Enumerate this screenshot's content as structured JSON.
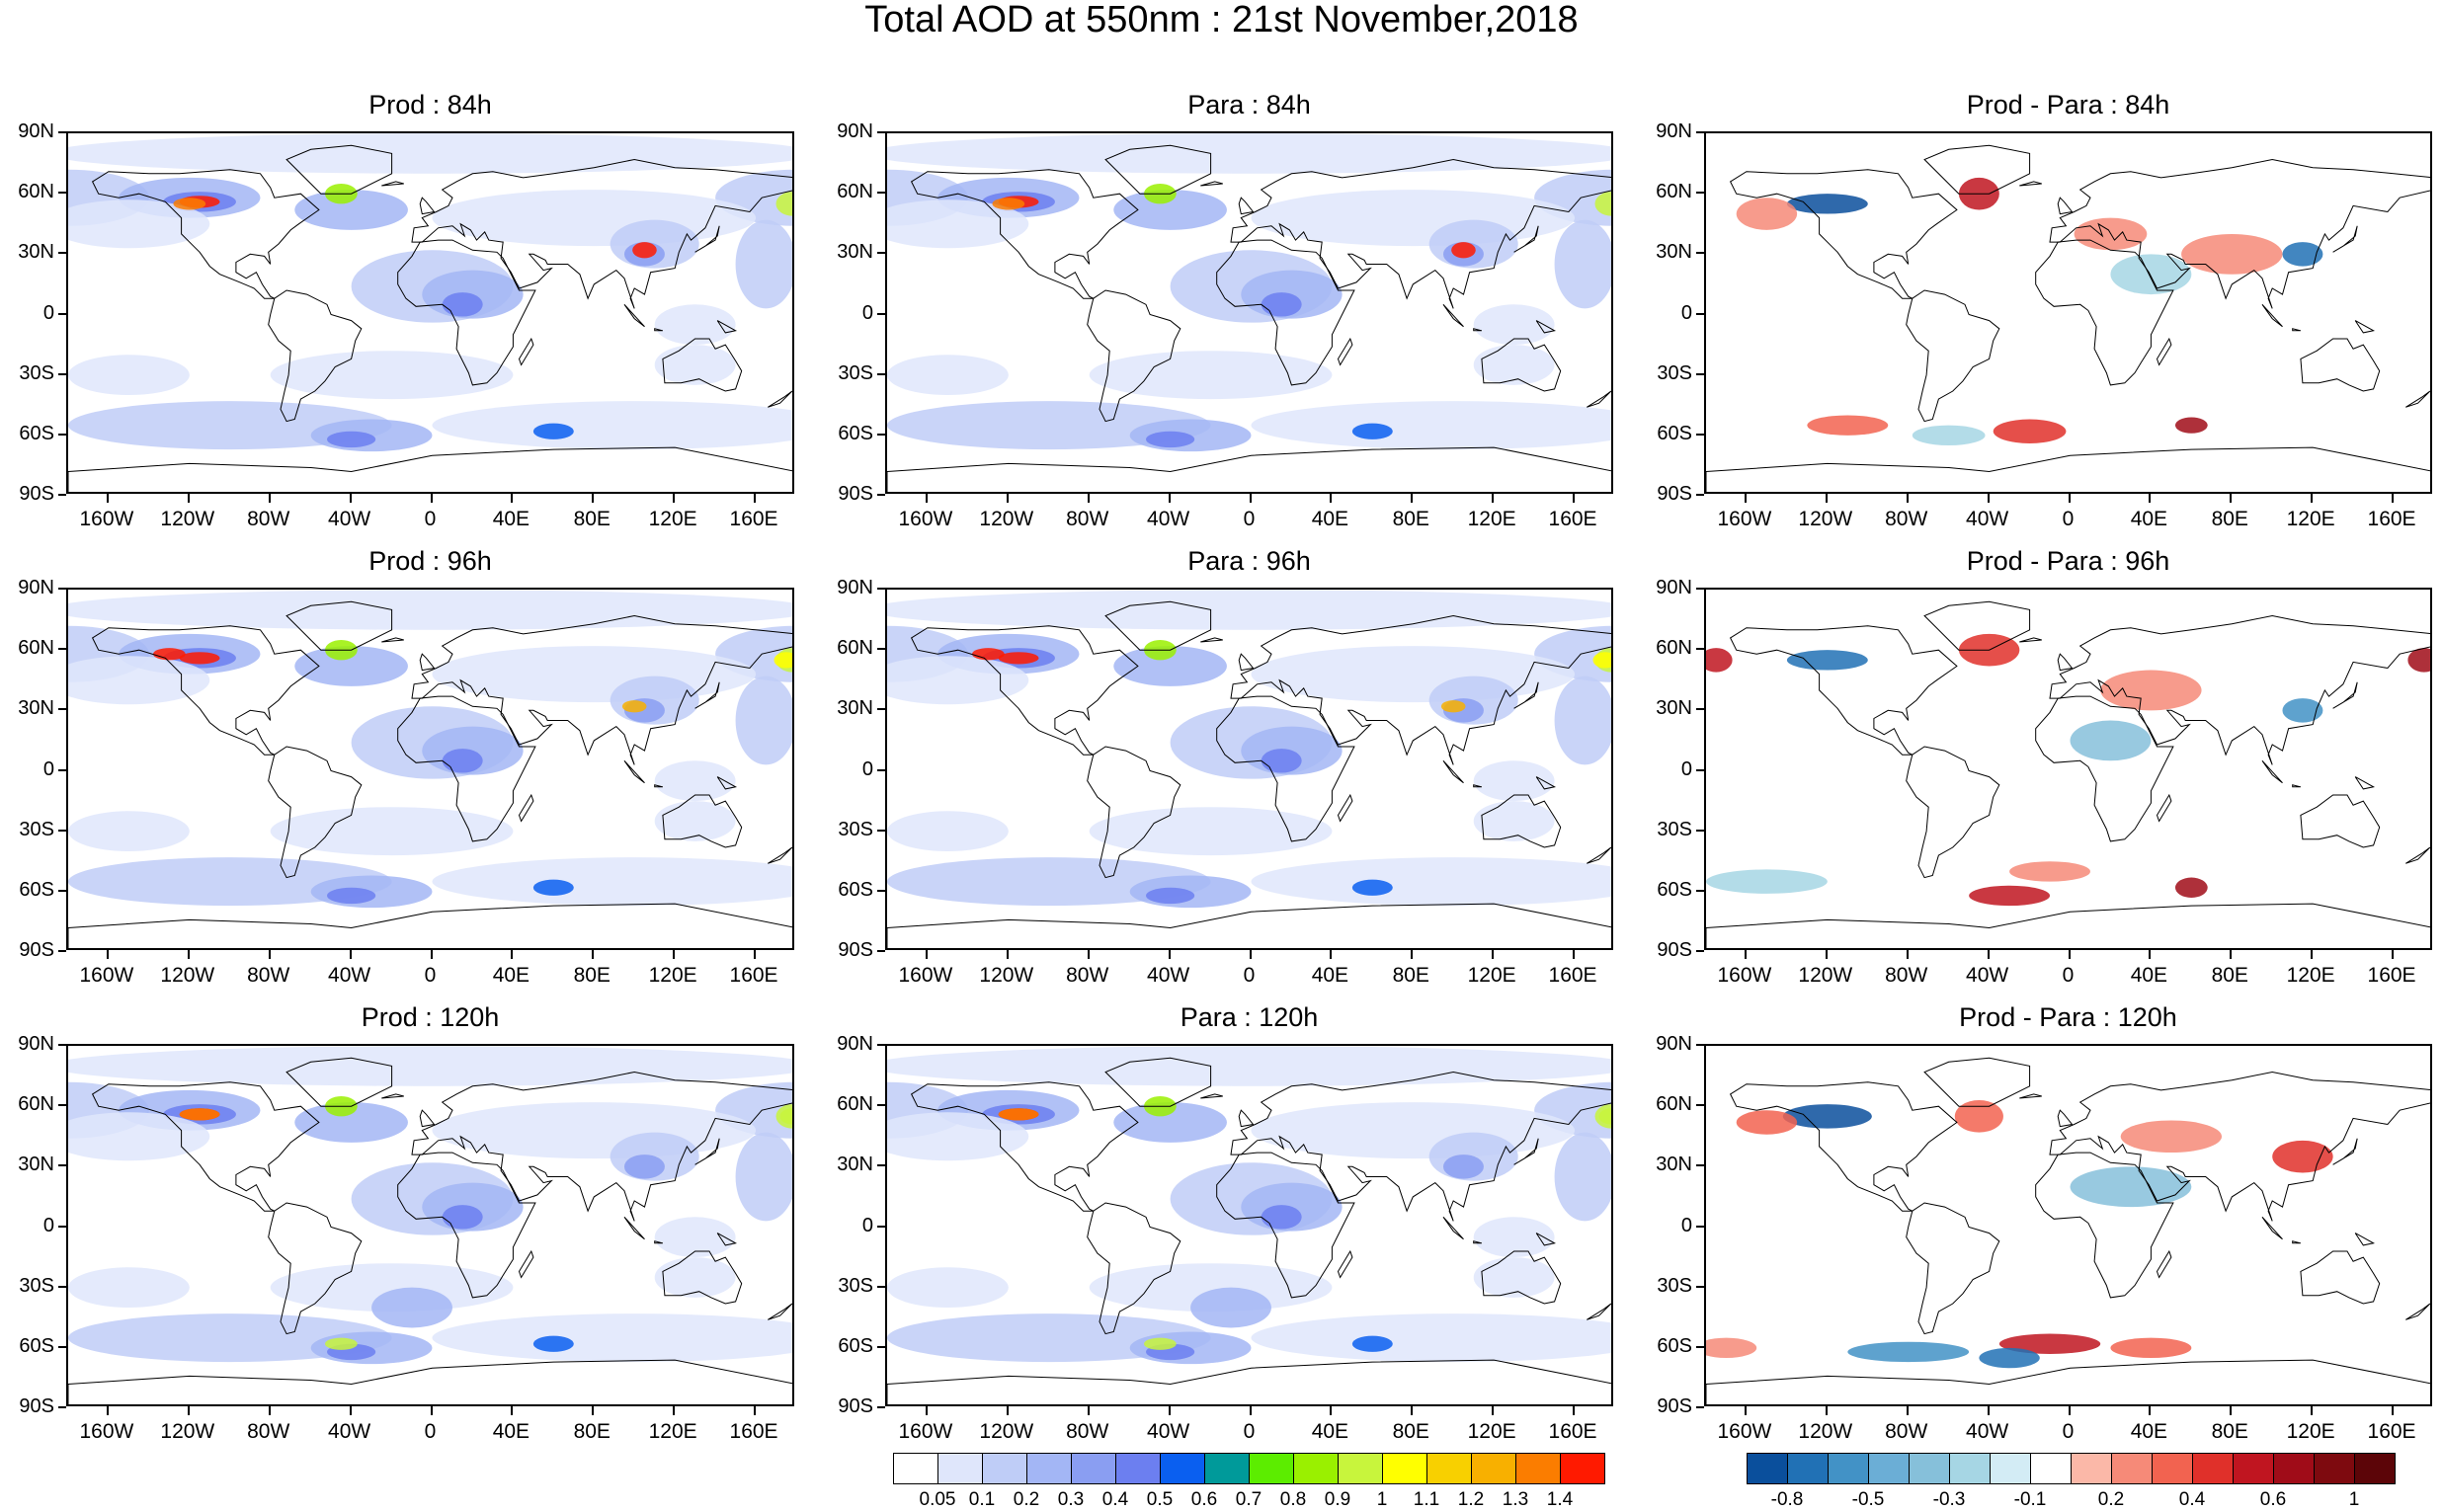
{
  "figure": {
    "title": "Total AOD at 550nm : 21st November,2018"
  },
  "lat_labels": [
    "90N",
    "60N",
    "30N",
    "0",
    "30S",
    "60S",
    "90S"
  ],
  "lon_labels": [
    "160W",
    "120W",
    "80W",
    "40W",
    "0",
    "40E",
    "80E",
    "120E",
    "160E"
  ],
  "panels": [
    {
      "title": "Prod : 84h",
      "kind": "aod"
    },
    {
      "title": "Para : 84h",
      "kind": "aod"
    },
    {
      "title": "Prod - Para : 84h",
      "kind": "diff"
    },
    {
      "title": "Prod : 96h",
      "kind": "aod"
    },
    {
      "title": "Para : 96h",
      "kind": "aod"
    },
    {
      "title": "Prod - Para : 96h",
      "kind": "diff"
    },
    {
      "title": "Prod : 120h",
      "kind": "aod"
    },
    {
      "title": "Para : 120h",
      "kind": "aod"
    },
    {
      "title": "Prod - Para : 120h",
      "kind": "diff"
    }
  ],
  "aod_colorbar": {
    "colors": [
      "#ffffff",
      "#dfe6fb",
      "#bfcdf7",
      "#a3b6f5",
      "#8a9ef2",
      "#6c7ff0",
      "#0a5ff0",
      "#009a9a",
      "#5ced00",
      "#9af000",
      "#c8f53c",
      "#ffff00",
      "#f8d000",
      "#f8b000",
      "#fb7d00",
      "#ff1a00"
    ],
    "labels": [
      "0.05",
      "0.1",
      "0.2",
      "0.3",
      "0.4",
      "0.5",
      "0.6",
      "0.7",
      "0.8",
      "0.9",
      "1",
      "1.1",
      "1.2",
      "1.3",
      "1.4"
    ]
  },
  "diff_colorbar": {
    "colors": [
      "#0a4f9c",
      "#2171b5",
      "#4292c6",
      "#6baed6",
      "#86c0da",
      "#a6d6e4",
      "#d3ecf5",
      "#ffffff",
      "#fbb8a8",
      "#f68a78",
      "#f26350",
      "#e0302a",
      "#c01520",
      "#a00c18",
      "#7e0a0f",
      "#5c0508"
    ],
    "labels": [
      "-0.8",
      "-0.5",
      "-0.3",
      "-0.1",
      "0.2",
      "0.4",
      "0.6",
      "1"
    ]
  }
}
